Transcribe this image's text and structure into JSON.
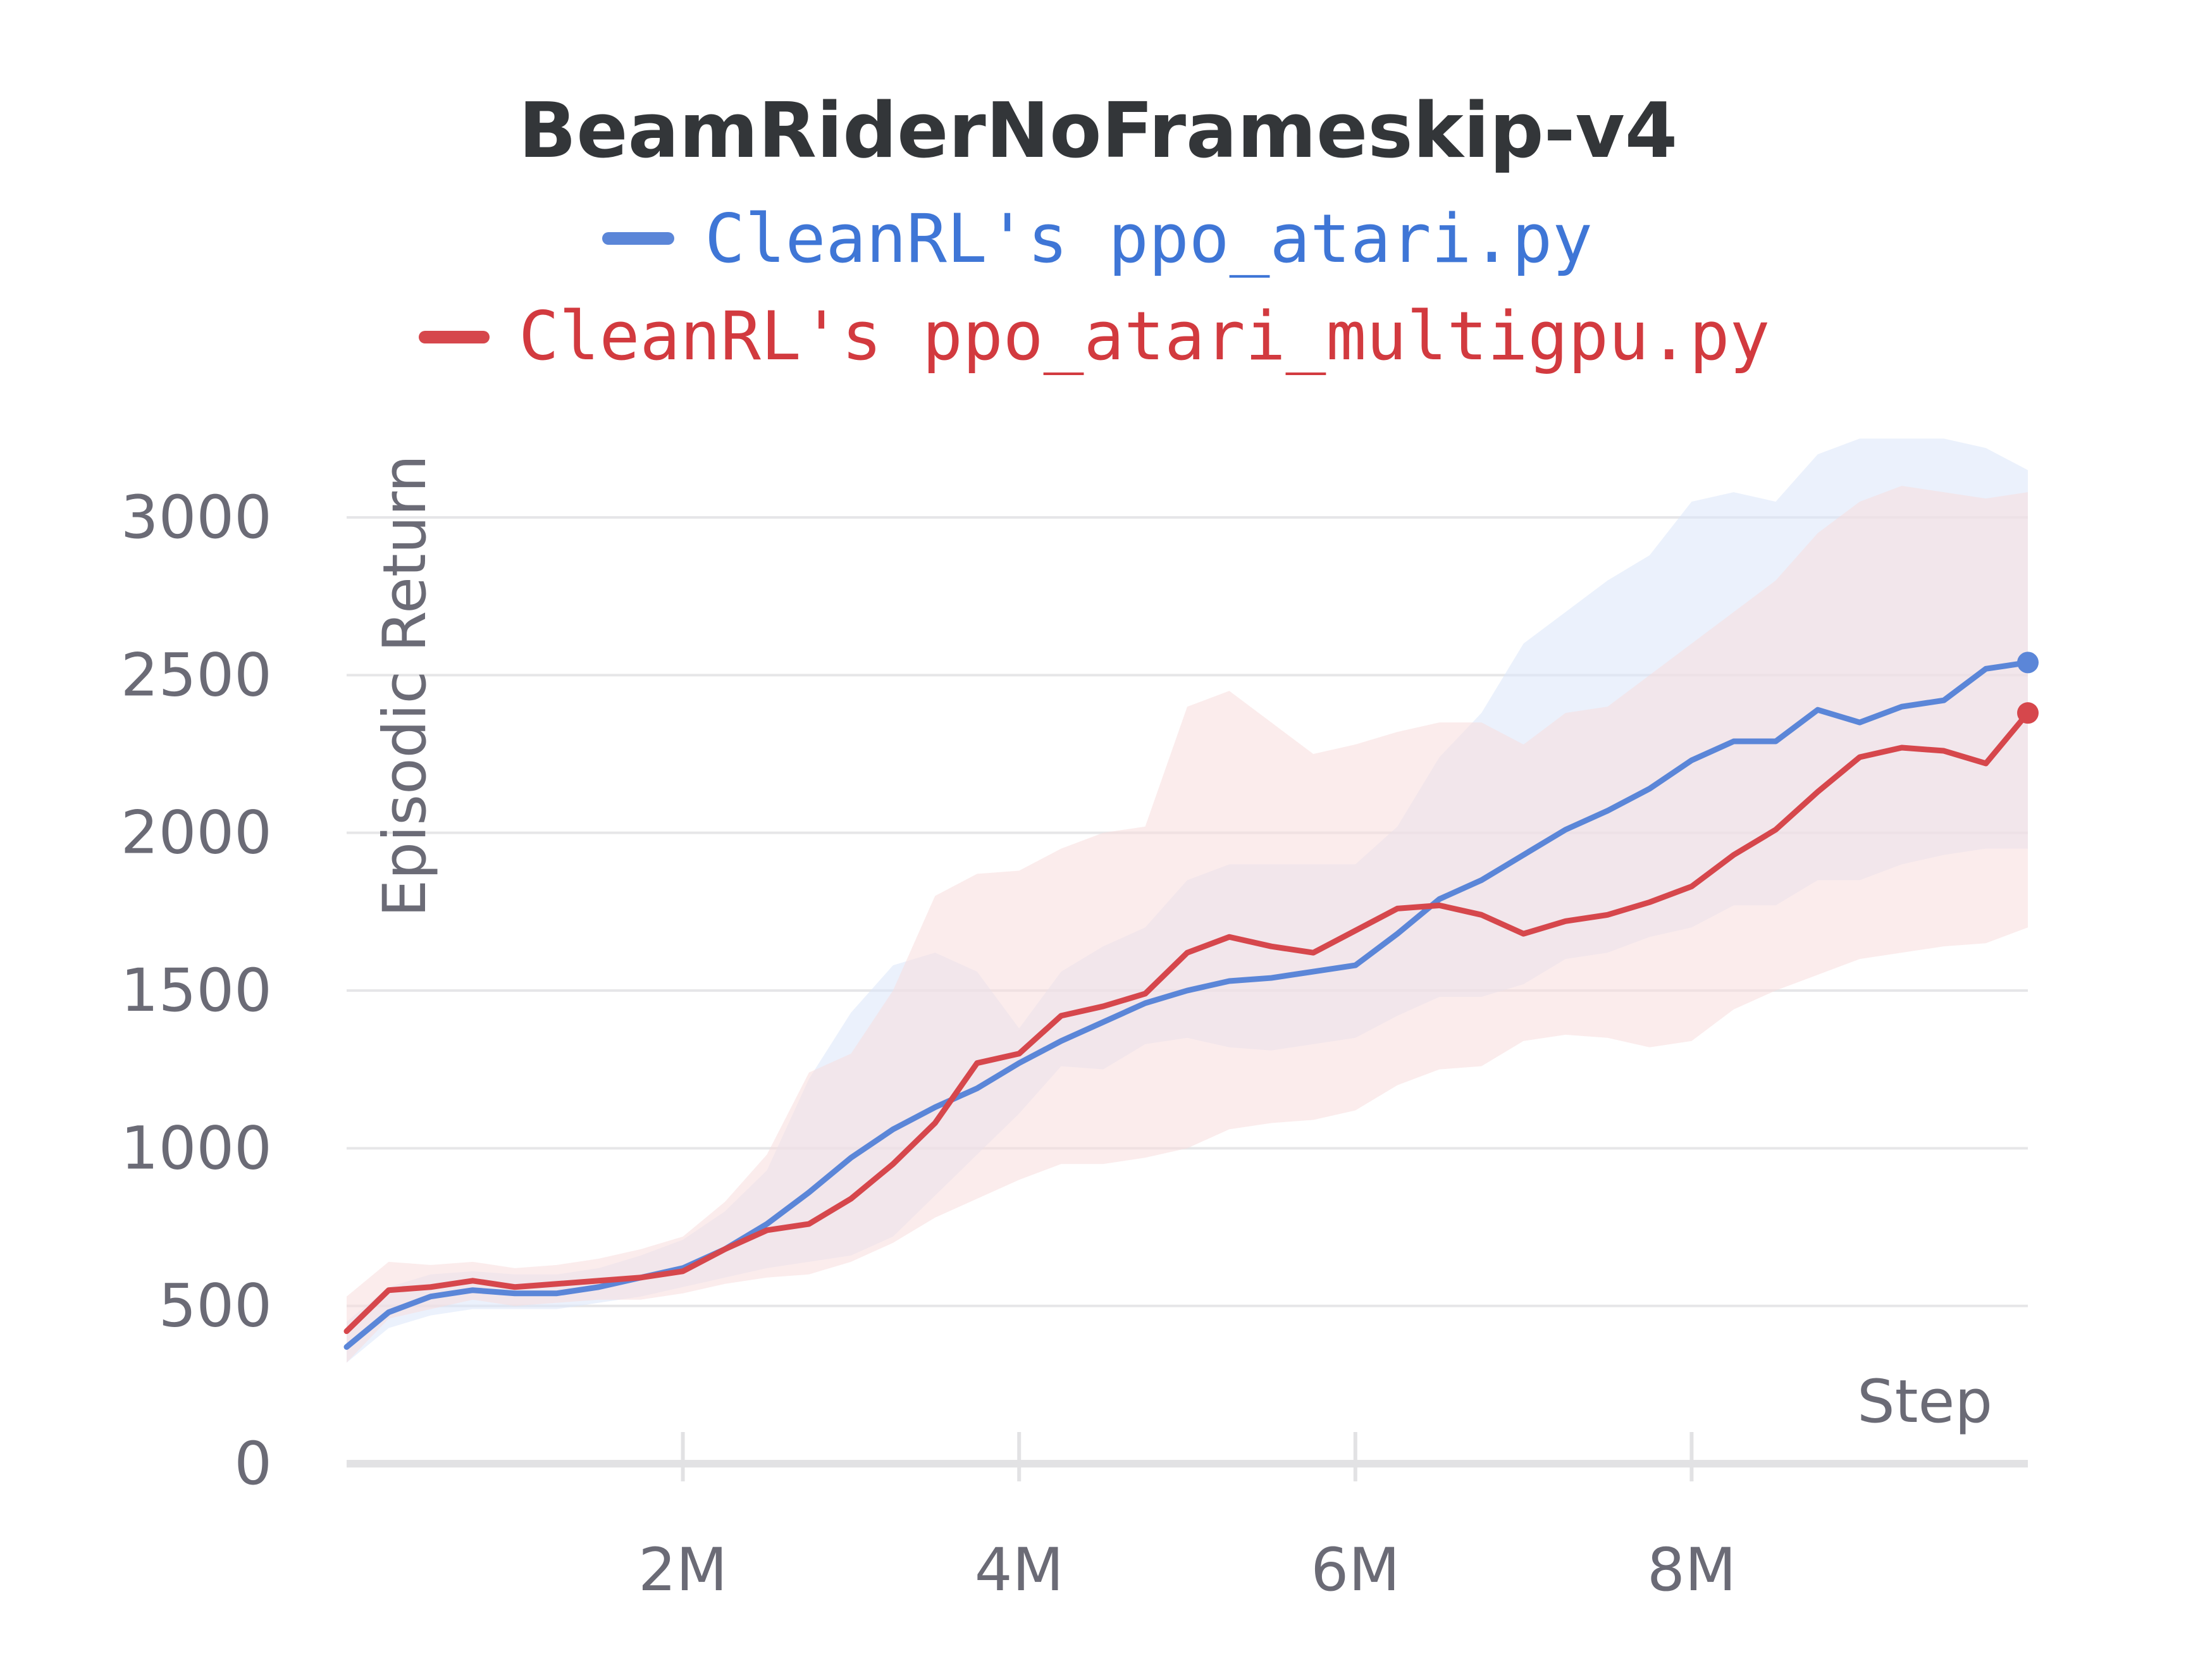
{
  "chart_data": {
    "type": "line",
    "title": "BeamRiderNoFrameskip-v4",
    "xlabel": "Step",
    "ylabel": "Episodic Return",
    "xlim": [
      0,
      10000000
    ],
    "ylim": [
      0,
      3000
    ],
    "x_ticks": [
      {
        "value": 2000000,
        "label": "2M"
      },
      {
        "value": 4000000,
        "label": "4M"
      },
      {
        "value": 6000000,
        "label": "6M"
      },
      {
        "value": 8000000,
        "label": "8M"
      }
    ],
    "y_ticks": [
      {
        "value": 0,
        "label": "0"
      },
      {
        "value": 500,
        "label": "500"
      },
      {
        "value": 1000,
        "label": "1000"
      },
      {
        "value": 1500,
        "label": "1500"
      },
      {
        "value": 2000,
        "label": "2000"
      },
      {
        "value": 2500,
        "label": "2500"
      },
      {
        "value": 3000,
        "label": "3000"
      }
    ],
    "grid": true,
    "legend_position": "top",
    "series": [
      {
        "name": "CleanRL's ppo_atari.py",
        "color": "#5b86d8",
        "band_color": "#dbe6fa",
        "x": [
          0,
          250000,
          500000,
          750000,
          1000000,
          1250000,
          1500000,
          1750000,
          2000000,
          2250000,
          2500000,
          2750000,
          3000000,
          3250000,
          3500000,
          3750000,
          4000000,
          4250000,
          4500000,
          4750000,
          5000000,
          5250000,
          5500000,
          5750000,
          6000000,
          6250000,
          6500000,
          6750000,
          7000000,
          7250000,
          7500000,
          7750000,
          8000000,
          8250000,
          8500000,
          8750000,
          9000000,
          9250000,
          9500000,
          9750000,
          10000000
        ],
        "y": [
          370,
          480,
          530,
          550,
          540,
          540,
          560,
          590,
          620,
          680,
          760,
          860,
          970,
          1060,
          1130,
          1190,
          1270,
          1340,
          1400,
          1460,
          1500,
          1530,
          1540,
          1560,
          1580,
          1680,
          1790,
          1850,
          1930,
          2010,
          2070,
          2140,
          2230,
          2290,
          2290,
          2390,
          2350,
          2400,
          2420,
          2520,
          2540
        ],
        "upper": [
          450,
          560,
          600,
          610,
          600,
          600,
          620,
          660,
          710,
          800,
          930,
          1220,
          1430,
          1580,
          1620,
          1560,
          1380,
          1560,
          1640,
          1700,
          1850,
          1900,
          1900,
          1900,
          1900,
          2020,
          2240,
          2380,
          2600,
          2700,
          2800,
          2880,
          3050,
          3080,
          3050,
          3200,
          3250,
          3250,
          3250,
          3220,
          3150
        ],
        "lower": [
          320,
          430,
          470,
          490,
          490,
          490,
          510,
          530,
          560,
          590,
          620,
          640,
          660,
          720,
          850,
          980,
          1110,
          1260,
          1250,
          1330,
          1350,
          1320,
          1310,
          1330,
          1350,
          1420,
          1480,
          1480,
          1520,
          1600,
          1620,
          1670,
          1700,
          1770,
          1770,
          1850,
          1850,
          1900,
          1930,
          1950,
          1950
        ]
      },
      {
        "name": "CleanRL's ppo_atari_multigpu.py",
        "color": "#d6474c",
        "band_color": "#f8dcdc",
        "x": [
          0,
          250000,
          500000,
          750000,
          1000000,
          1250000,
          1500000,
          1750000,
          2000000,
          2250000,
          2500000,
          2750000,
          3000000,
          3250000,
          3500000,
          3750000,
          4000000,
          4250000,
          4500000,
          4750000,
          5000000,
          5250000,
          5500000,
          5750000,
          6000000,
          6250000,
          6500000,
          6750000,
          7000000,
          7250000,
          7500000,
          7750000,
          8000000,
          8250000,
          8500000,
          8750000,
          9000000,
          9250000,
          9500000,
          9750000,
          10000000
        ],
        "y": [
          420,
          550,
          560,
          580,
          560,
          570,
          580,
          590,
          610,
          680,
          740,
          760,
          840,
          950,
          1080,
          1270,
          1300,
          1420,
          1450,
          1490,
          1620,
          1670,
          1640,
          1620,
          1690,
          1760,
          1770,
          1740,
          1680,
          1720,
          1740,
          1780,
          1830,
          1930,
          2010,
          2130,
          2240,
          2270,
          2260,
          2220,
          2380
        ],
        "upper": [
          530,
          640,
          630,
          640,
          620,
          630,
          650,
          680,
          720,
          830,
          980,
          1240,
          1300,
          1500,
          1800,
          1870,
          1880,
          1950,
          2000,
          2020,
          2400,
          2450,
          2350,
          2250,
          2280,
          2320,
          2350,
          2350,
          2280,
          2380,
          2400,
          2500,
          2600,
          2700,
          2800,
          2950,
          3050,
          3100,
          3080,
          3060,
          3080
        ],
        "lower": [
          320,
          460,
          490,
          520,
          500,
          510,
          520,
          520,
          540,
          570,
          590,
          600,
          640,
          700,
          780,
          840,
          900,
          950,
          950,
          970,
          1000,
          1060,
          1080,
          1090,
          1120,
          1200,
          1250,
          1260,
          1340,
          1360,
          1350,
          1320,
          1340,
          1440,
          1500,
          1550,
          1600,
          1620,
          1640,
          1650,
          1700
        ]
      }
    ]
  }
}
